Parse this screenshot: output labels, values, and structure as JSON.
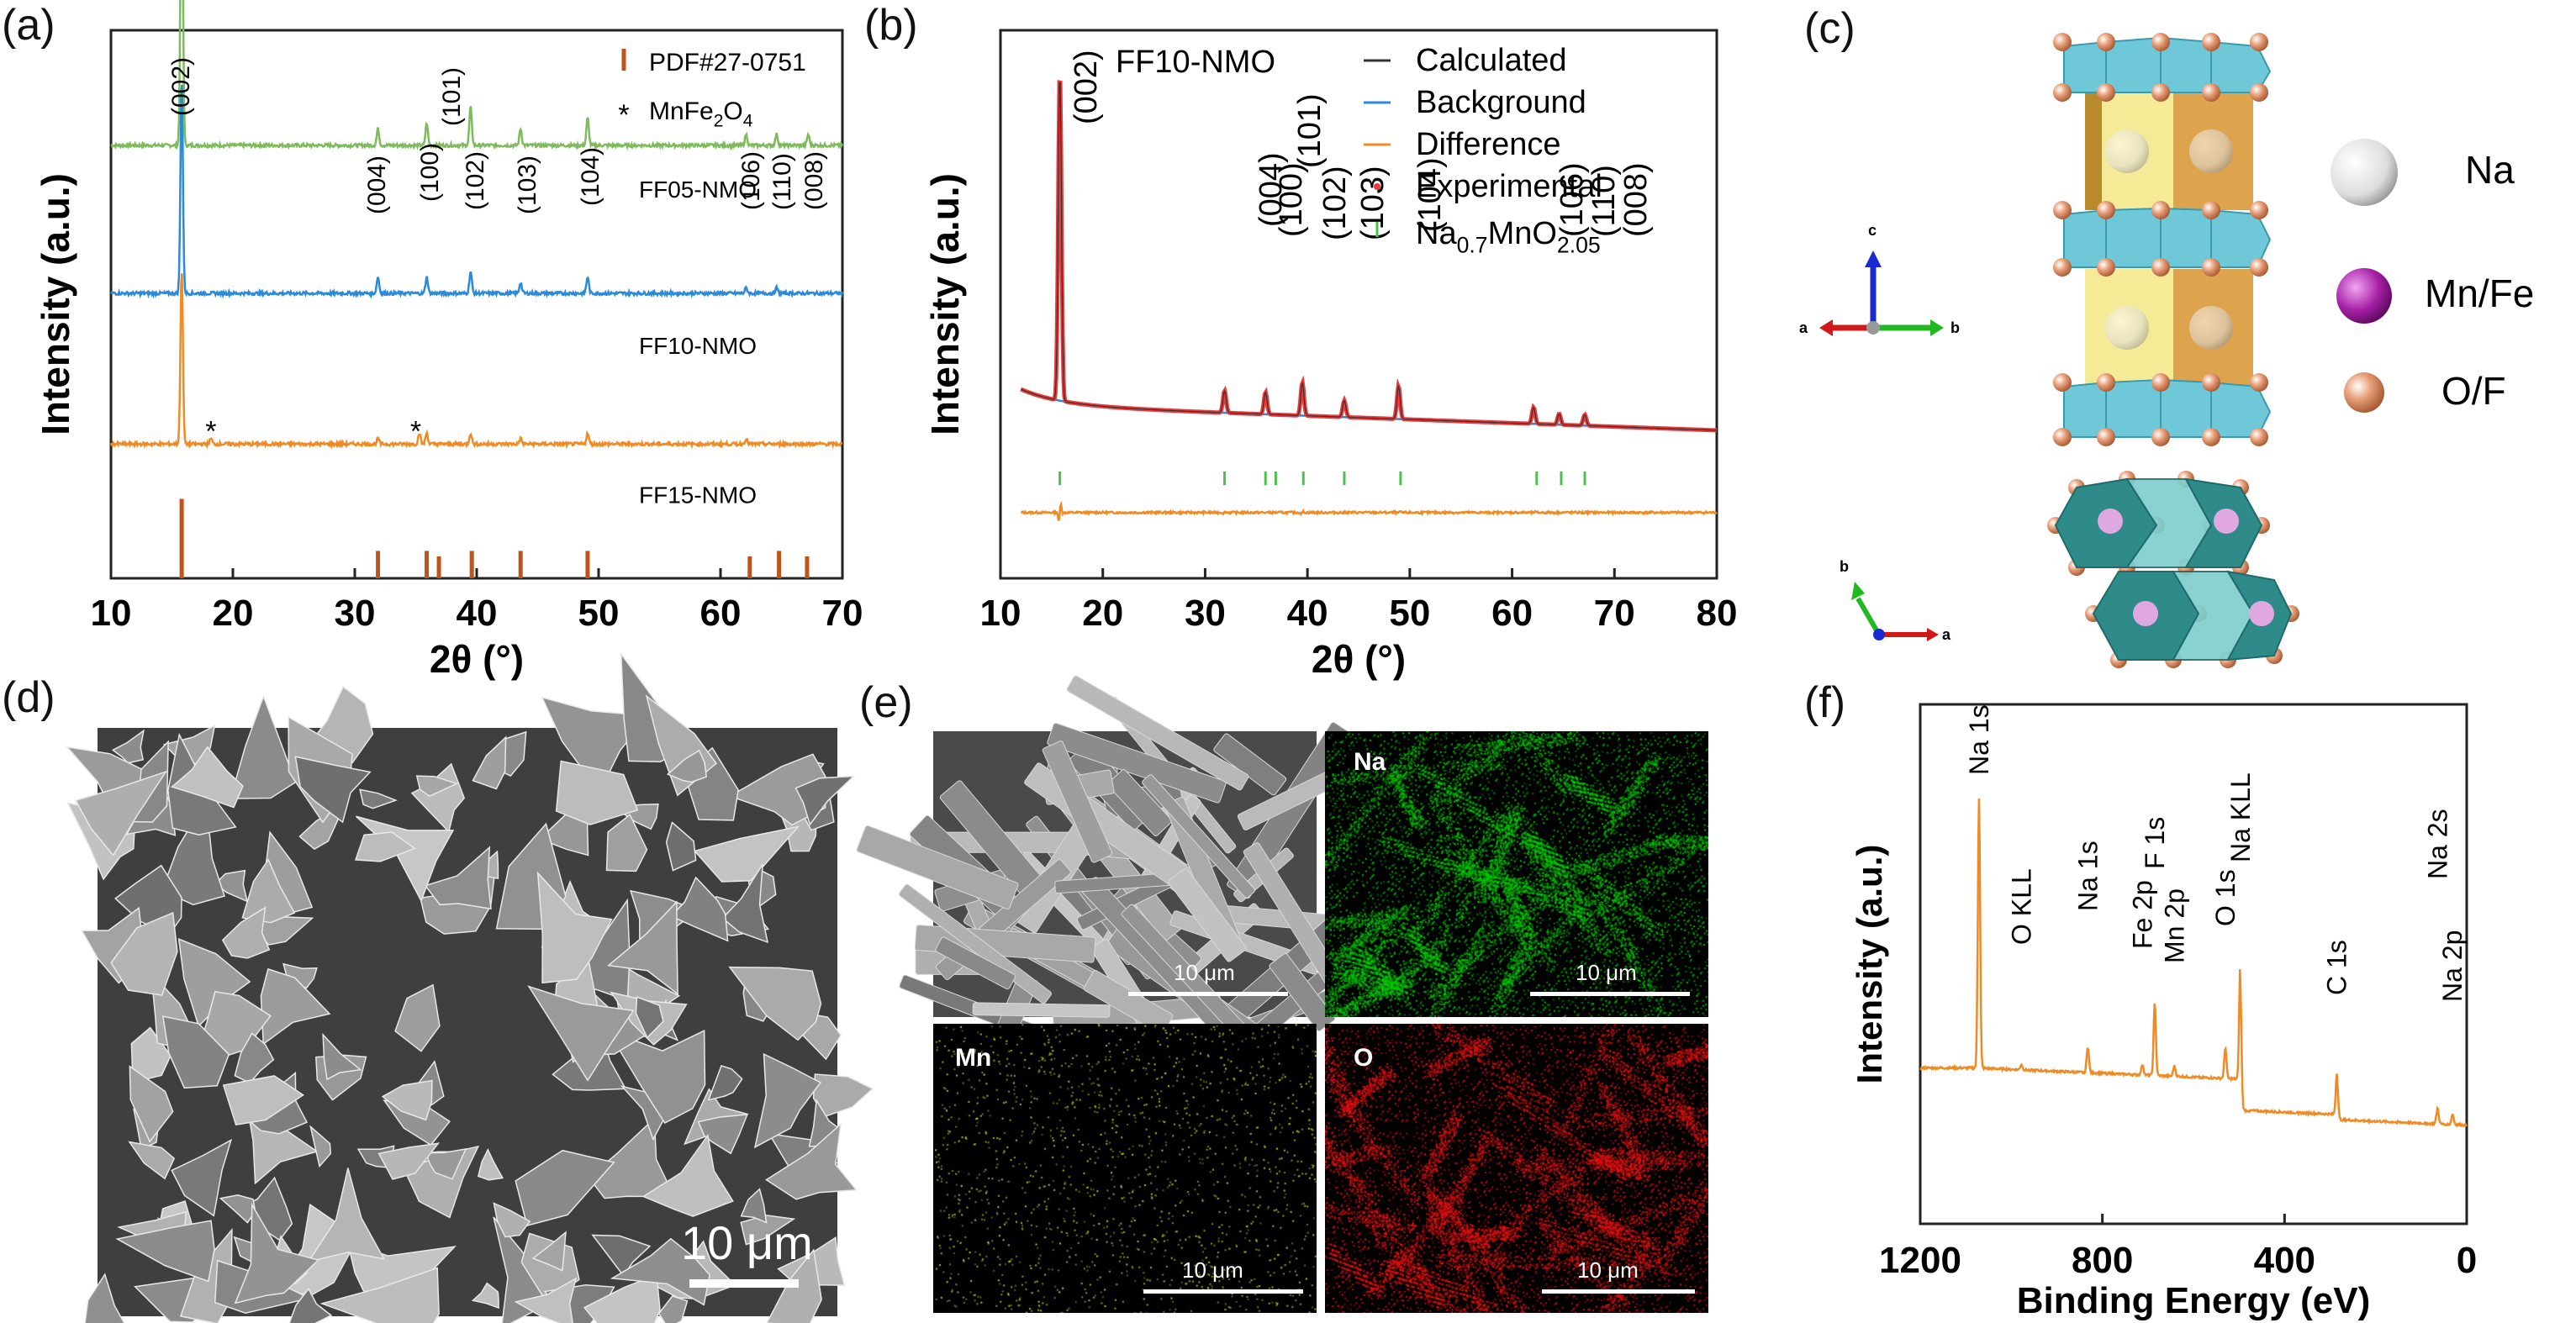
{
  "panels": {
    "a": "(a)",
    "b": "(b)",
    "c": "(c)",
    "d": "(d)",
    "e": "(e)",
    "f": "(f)"
  },
  "structure": {
    "legend": [
      {
        "label": "Na",
        "color": "#e9e9e9"
      },
      {
        "label": "Mn/Fe",
        "color": "#9a1a9a"
      },
      {
        "label": "O/F",
        "color": "#c8805a"
      }
    ],
    "axes_top": {
      "a": "a",
      "b": "b",
      "c": "c"
    },
    "axes_bottom": {
      "a": "a",
      "b": "b"
    }
  },
  "sem_d": {
    "scalebar": "10 μm"
  },
  "eds_e": {
    "sem_scalebar": "10 μm",
    "maps": [
      {
        "label": "Na",
        "scalebar": "10 μm",
        "color": "#00c800"
      },
      {
        "label": "Mn",
        "scalebar": "10 μm",
        "color": "#c8c832"
      },
      {
        "label": "O",
        "scalebar": "10 μm",
        "color": "#e61010"
      }
    ]
  },
  "chart_data": [
    {
      "id": "a",
      "type": "line",
      "xlabel": "2θ (°)",
      "ylabel": "Intensity (a.u.)",
      "xlim": [
        10,
        70
      ],
      "xticks": [
        10,
        20,
        30,
        40,
        50,
        60,
        70
      ],
      "series": [
        {
          "name": "FF05-NMO",
          "color": "#7dbb5c",
          "baseline": 0.79,
          "peaks": [
            [
              15.8,
              0.58
            ],
            [
              31.9,
              0.03
            ],
            [
              35.9,
              0.04
            ],
            [
              39.5,
              0.07
            ],
            [
              43.6,
              0.03
            ],
            [
              49.1,
              0.05
            ],
            [
              62.1,
              0.02
            ],
            [
              64.6,
              0.02
            ],
            [
              67.2,
              0.02
            ]
          ]
        },
        {
          "name": "FF10-NMO",
          "color": "#2b8ad9",
          "baseline": 0.52,
          "peaks": [
            [
              15.8,
              0.39
            ],
            [
              31.9,
              0.03
            ],
            [
              35.9,
              0.03
            ],
            [
              39.5,
              0.04
            ],
            [
              43.6,
              0.02
            ],
            [
              49.1,
              0.03
            ],
            [
              62.1,
              0.01
            ],
            [
              64.6,
              0.01
            ]
          ]
        },
        {
          "name": "FF15-NMO",
          "color": "#f08a24",
          "baseline": 0.245,
          "peaks": [
            [
              15.8,
              0.32
            ],
            [
              18.2,
              0.01
            ],
            [
              31.9,
              0.01
            ],
            [
              35.3,
              0.02
            ],
            [
              35.9,
              0.02
            ],
            [
              39.5,
              0.02
            ],
            [
              43.6,
              0.01
            ],
            [
              49.1,
              0.02
            ],
            [
              62.1,
              0.01
            ]
          ]
        }
      ],
      "reference": {
        "name": "PDF#27-0751",
        "color": "#c0531a",
        "positions": [
          15.8,
          31.9,
          35.9,
          36.9,
          39.6,
          43.6,
          49.1,
          62.4,
          64.8,
          67.1
        ],
        "heights": [
          0.145,
          0.05,
          0.05,
          0.04,
          0.05,
          0.05,
          0.05,
          0.04,
          0.05,
          0.04
        ]
      },
      "impurity": {
        "name": "MnFe",
        "sub1": "2",
        "mid": "O",
        "sub2": "4",
        "marker": "*",
        "positions": [
          18.2,
          35.0
        ]
      },
      "peak_labels": [
        {
          "text": "(002)",
          "x": 15.8
        },
        {
          "text": "(004)",
          "x": 31.9
        },
        {
          "text": "(100)",
          "x": 35.9
        },
        {
          "text": "(101)",
          "x": 36.9
        },
        {
          "text": "(102)",
          "x": 39.6
        },
        {
          "text": "(103)",
          "x": 43.6
        },
        {
          "text": "(104)",
          "x": 49.1
        },
        {
          "text": "(106)",
          "x": 62.1
        },
        {
          "text": "(110)",
          "x": 64.6
        },
        {
          "text": "(008)",
          "x": 67.2
        }
      ]
    },
    {
      "id": "b",
      "type": "line",
      "title": "FF10-NMO",
      "xlabel": "2θ (°)",
      "ylabel": "Intensity (a.u.)",
      "xlim": [
        10,
        80
      ],
      "xticks": [
        10,
        20,
        30,
        40,
        50,
        60,
        70,
        80
      ],
      "legend": [
        {
          "label": "Calculated",
          "color": "#333333"
        },
        {
          "label": "Background",
          "color": "#2b8ad9"
        },
        {
          "label": "Difference",
          "color": "#f08a24"
        },
        {
          "label": "Experimental",
          "color": "#ea3a3a"
        },
        {
          "label": "Na",
          "sub1": "0.7",
          "mid": "MnO",
          "sub2": "2.05",
          "color": "#4cc24c"
        }
      ],
      "experimental": {
        "baseline_start": 0.315,
        "baseline_end": 0.27,
        "peaks": [
          [
            15.8,
            0.6
          ],
          [
            31.9,
            0.04
          ],
          [
            35.9,
            0.04
          ],
          [
            39.5,
            0.06
          ],
          [
            43.6,
            0.03
          ],
          [
            48.9,
            0.06
          ],
          [
            62.1,
            0.03
          ],
          [
            64.6,
            0.02
          ],
          [
            67.1,
            0.02
          ]
        ]
      },
      "difference_baseline": 0.12,
      "bragg_positions": [
        15.8,
        31.9,
        35.9,
        36.9,
        39.6,
        43.6,
        49.1,
        62.4,
        64.8,
        67.1
      ],
      "peak_labels": [
        {
          "text": "(002)",
          "x": 15.8
        },
        {
          "text": "(004)",
          "x": 31.9
        },
        {
          "text": "(100)",
          "x": 35.0
        },
        {
          "text": "(101)",
          "x": 37.8
        },
        {
          "text": "(102)",
          "x": 39.8
        },
        {
          "text": "(103)",
          "x": 43.6
        },
        {
          "text": "(104)",
          "x": 48.9
        },
        {
          "text": "(106)",
          "x": 62.1
        },
        {
          "text": "(110)",
          "x": 64.6
        },
        {
          "text": "(008)",
          "x": 67.1
        }
      ]
    },
    {
      "id": "f",
      "type": "line",
      "xlabel": "Binding Energy (eV)",
      "ylabel": "Intensity (a.u.)",
      "xlim": [
        1200,
        0
      ],
      "xticks": [
        1200,
        800,
        400,
        0
      ],
      "color": "#f08a24",
      "peaks": [
        {
          "label": "Na 1s",
          "x": 1071
        },
        {
          "label": "O KLL",
          "x": 978
        },
        {
          "label": "Na 1s",
          "x": 832
        },
        {
          "label": "Fe 2p",
          "x": 712
        },
        {
          "label": "F 1s",
          "x": 685
        },
        {
          "label": "Mn 2p",
          "x": 642
        },
        {
          "label": "O 1s",
          "x": 530
        },
        {
          "label": "Na KLL",
          "x": 497
        },
        {
          "label": "C 1s",
          "x": 285
        },
        {
          "label": "Na 2s",
          "x": 64
        },
        {
          "label": "Na 2p",
          "x": 31
        }
      ]
    }
  ]
}
